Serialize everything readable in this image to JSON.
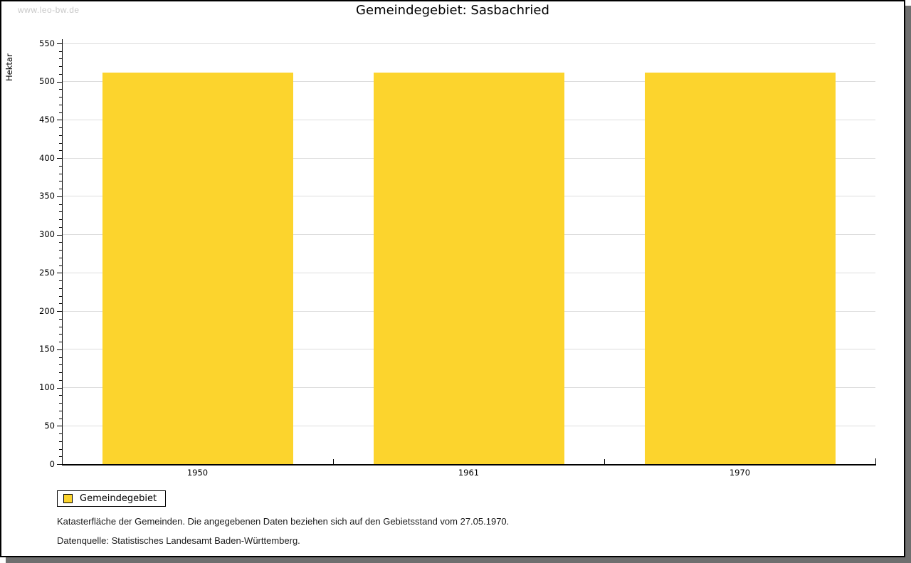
{
  "watermark": "www.leo-bw.de",
  "header": {
    "title": "Gemeindegebiet: Sasbachried"
  },
  "chart_data": {
    "type": "bar",
    "title": "Gemeindegebiet: Sasbachried",
    "ylabel": "Hektar",
    "xlabel": "",
    "categories": [
      "1950",
      "1961",
      "1970"
    ],
    "series": [
      {
        "name": "Gemeindegebiet",
        "values": [
          512,
          512,
          512
        ],
        "color": "#fcd42d"
      }
    ],
    "unit": "Hektar",
    "ylim": [
      0,
      550
    ],
    "ytick_major_interval": 50,
    "ytick_minor_interval": 10,
    "grid": "horizontal major gridlines, light gray",
    "legend_position": "below-left"
  },
  "legend": {
    "items": [
      {
        "label": "Gemeindegebiet",
        "color": "#fcd42d"
      }
    ]
  },
  "footnotes": {
    "line1": "Katasterfläche der Gemeinden. Die angegebenen Daten beziehen sich auf den Gebietsstand vom 27.05.1970.",
    "line2": "Datenquelle: Statistisches Landesamt Baden-Württemberg."
  },
  "colors": {
    "bar": "#fcd42d",
    "gridline": "#dddddd",
    "axis": "#000000",
    "card_border": "#000000",
    "card_shadow": "#6f6f6f",
    "watermark_text": "#c8c8c8"
  }
}
